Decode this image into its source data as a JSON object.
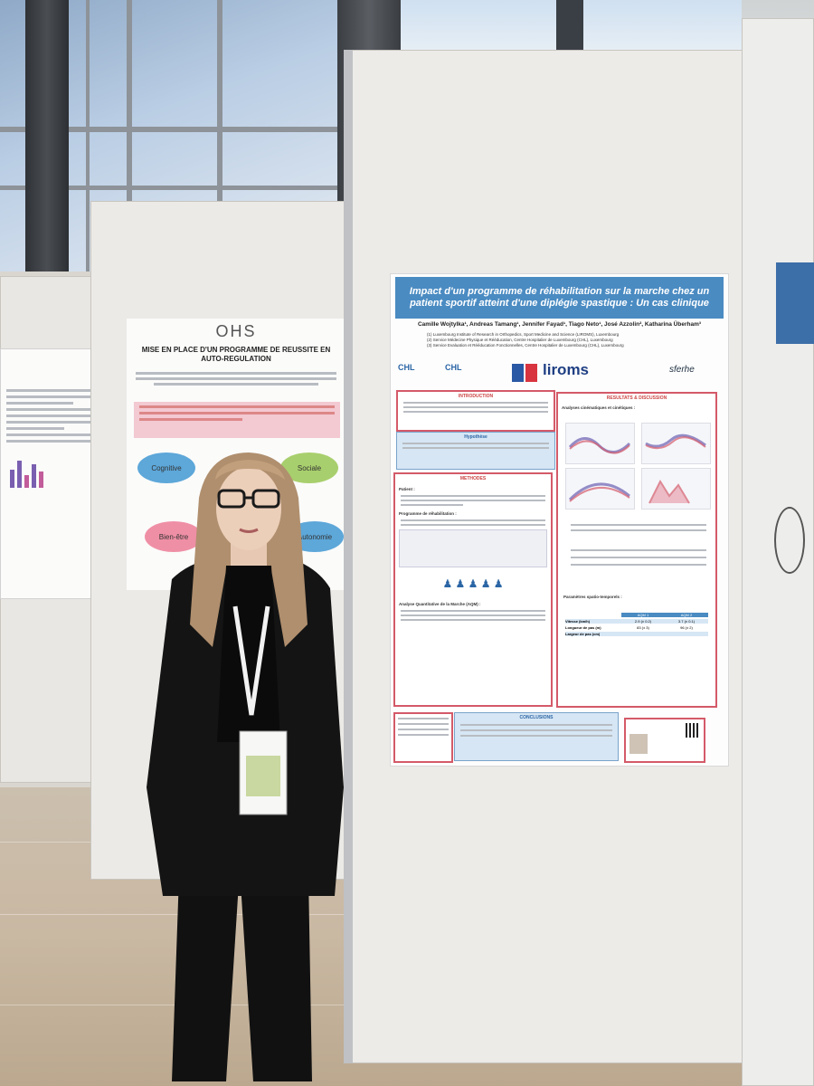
{
  "scene": {
    "description_tag": "poster-session-photo"
  },
  "poster_ohs": {
    "logo": "OHS",
    "title": "MISE EN PLACE D'UN PROGRAMME DE REUSSITE EN AUTO-REGULATION",
    "bubbles": [
      "Cognitive",
      "Sociale",
      "Bien-être",
      "Autonomie"
    ]
  },
  "poster_main": {
    "title": "Impact d'un programme de réhabilitation sur la marche chez un patient sportif atteint d'une diplégie spastique : Un cas clinique",
    "authors": "Camille Wojtylka¹, Andreas Tamang¹, Jennifer Fayad¹, Tiago Neto¹, José Azzolin², Katharina Überham³",
    "affiliations": [
      "(1) Luxembourg Institute of Research in Orthopedics, Sport Medicine and Science (LIROMS), Luxembourg",
      "(2) Service Médecine Physique et Rééducation, Centre Hospitalier de Luxembourg (CHL), Luxembourg",
      "(3) Service Evaluation et Rééducation Fonctionnelles, Centre Hospitalier de Luxembourg (CHL), Luxembourg"
    ],
    "logos": {
      "chl_1": "CHL",
      "chl_2": "CHL",
      "liroms": "liroms",
      "sferhe": "sferhe"
    },
    "sections": {
      "introduction": "INTRODUCTION",
      "hypothese": "Hypothèse",
      "methodes": "METHODES",
      "patient_label": "Patient :",
      "programme_label": "Programme de réhabilitation :",
      "analyse_label": "Analyse Quantitative de la Marche (AQM) :",
      "results": "RESULTATS & DISCUSSION",
      "analyses_label": "Analyses cinématiques et cinétiques :",
      "params_label": "Paramètres spatio-temporels :",
      "conclusion": "CONCLUSIONS"
    },
    "table_headers": [
      "Vitesse (km/h)",
      "Longueur de pas (m)",
      "Largeur de pas (cm)"
    ],
    "table_cols": [
      "AQM 1",
      "AQM 2"
    ],
    "table_values": [
      [
        "2.9 (± 0.2)",
        "3.7 (± 0.1)"
      ],
      [
        "83 (± 3)",
        "96 (± 2)"
      ]
    ]
  }
}
